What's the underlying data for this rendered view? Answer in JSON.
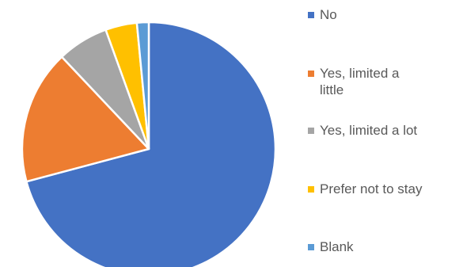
{
  "chart_data": {
    "type": "pie",
    "categories": [
      "No",
      "Yes, limited a little",
      "Yes, limited a lot",
      "Prefer not to stay",
      "Blank"
    ],
    "values": [
      70.5,
      17.0,
      6.5,
      4.0,
      1.5
    ],
    "colors": [
      "#4472C4",
      "#ED7D31",
      "#A5A5A5",
      "#FFC000",
      "#5B9BD5"
    ],
    "start_angle_deg": 0,
    "direction": "clockwise",
    "legend_position": "right",
    "legend": [
      {
        "label": "No",
        "color": "#4472C4"
      },
      {
        "label": "Yes, limited a\nlittle",
        "color": "#ED7D31"
      },
      {
        "label": "Yes, limited a lot",
        "color": "#A5A5A5"
      },
      {
        "label": "Prefer not to stay",
        "color": "#FFC000"
      },
      {
        "label": "Blank",
        "color": "#5B9BD5"
      }
    ]
  }
}
